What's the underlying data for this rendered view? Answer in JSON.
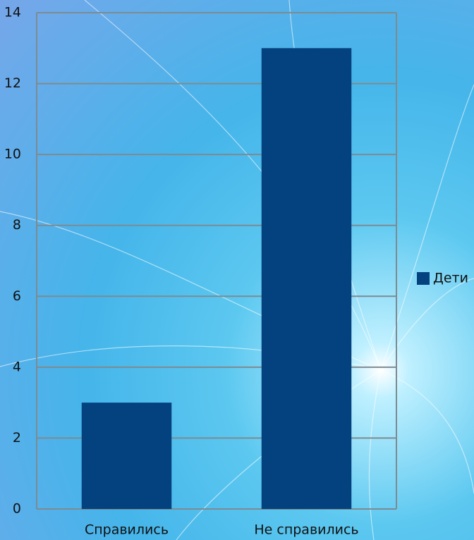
{
  "chart_data": {
    "type": "bar",
    "categories": [
      "Справились",
      "Не справились"
    ],
    "series": [
      {
        "name": "Дети",
        "color": "#03417f",
        "values": [
          3,
          13
        ]
      }
    ],
    "ylim": [
      0,
      14
    ],
    "yticks": [
      0,
      2,
      4,
      6,
      8,
      10,
      12,
      14
    ],
    "grid": true,
    "legend": "right"
  }
}
